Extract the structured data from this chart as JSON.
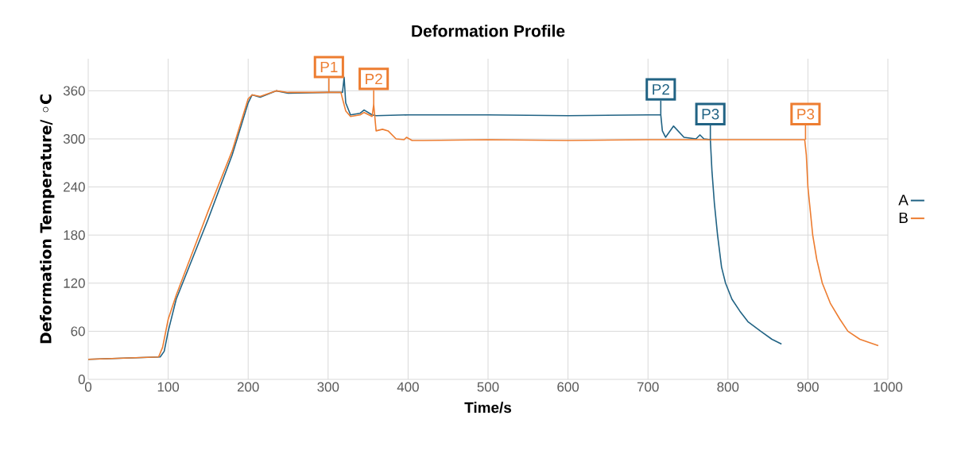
{
  "chart_data": {
    "type": "line",
    "title": "Deformation Profile",
    "xlabel": "Time/s",
    "ylabel": "Deformation Temperature/ ◦C",
    "xlim": [
      0,
      1000
    ],
    "xticks": [
      0,
      100,
      200,
      300,
      400,
      500,
      600,
      700,
      800,
      900,
      1000
    ],
    "ylim": [
      0,
      400
    ],
    "yticks": [
      0,
      60,
      120,
      180,
      240,
      300,
      360
    ],
    "grid": true,
    "legend": "right",
    "marker": "none",
    "line_style": "solid",
    "series": [
      {
        "name": "A",
        "color": "#216384",
        "x": [
          0,
          90,
          95,
          100,
          110,
          120,
          150,
          180,
          200,
          205,
          215,
          225,
          235,
          250,
          300,
          318,
          320,
          322,
          328,
          340,
          345,
          355,
          360,
          400,
          500,
          600,
          700,
          716,
          718,
          722,
          732,
          745,
          760,
          765,
          770,
          778,
          780,
          783,
          787,
          792,
          797,
          805,
          815,
          825,
          841,
          855,
          867
        ],
        "values": [
          25,
          28,
          35,
          60,
          100,
          125,
          200,
          280,
          345,
          355,
          352,
          356,
          360,
          357,
          358,
          358,
          377,
          345,
          330,
          332,
          336,
          330,
          329,
          330,
          330,
          329,
          330,
          330,
          310,
          302,
          316,
          302,
          300,
          305,
          300,
          299,
          260,
          220,
          180,
          140,
          120,
          100,
          85,
          72,
          60,
          50,
          44
        ]
      },
      {
        "name": "B",
        "color": "#ed7d31",
        "x": [
          0,
          88,
          93,
          100,
          110,
          150,
          180,
          200,
          205,
          215,
          235,
          250,
          316,
          318,
          322,
          328,
          340,
          345,
          355,
          357,
          360,
          368,
          375,
          385,
          395,
          398,
          405,
          420,
          500,
          600,
          700,
          800,
          896,
          898,
          900,
          903,
          906,
          911,
          918,
          928,
          940,
          950,
          965,
          988
        ],
        "values": [
          25,
          28,
          40,
          75,
          105,
          210,
          285,
          350,
          355,
          353,
          360,
          358,
          358,
          350,
          335,
          328,
          330,
          333,
          328,
          343,
          310,
          312,
          310,
          300,
          299,
          302,
          298,
          298,
          299,
          298,
          299,
          299,
          299,
          280,
          240,
          210,
          180,
          150,
          120,
          95,
          75,
          60,
          50,
          42
        ]
      }
    ],
    "annotations": [
      {
        "text": "P1",
        "x": 301,
        "y": 358
      },
      {
        "text": "P2",
        "x": 357,
        "y": 343
      },
      {
        "text": "P2",
        "x": 716,
        "y": 330
      },
      {
        "text": "P3",
        "x": 778,
        "y": 299
      },
      {
        "text": "P3",
        "x": 897,
        "y": 299
      }
    ]
  }
}
